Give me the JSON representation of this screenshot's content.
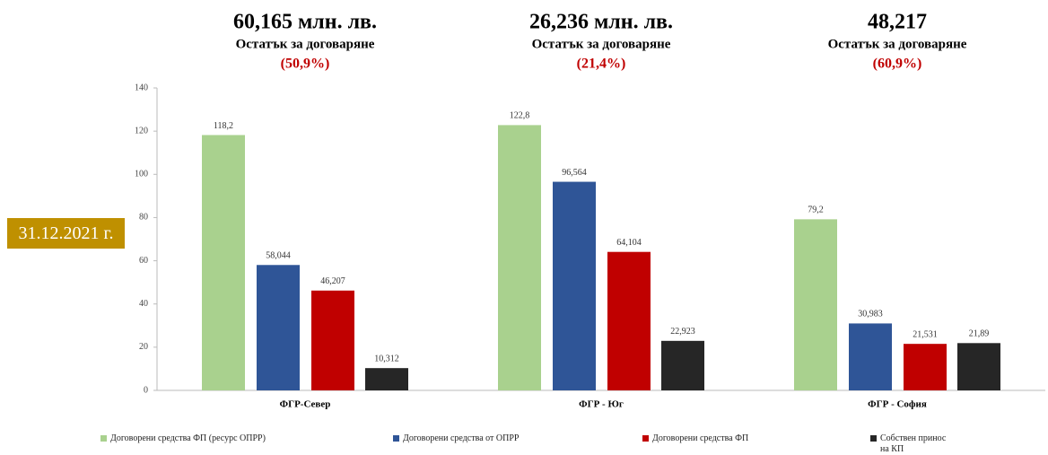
{
  "chart_data": {
    "type": "bar",
    "date_label": "31.12.2021 г.",
    "group_headers": [
      {
        "amount": "60,165 млн. лв.",
        "caption": "Остатък за договаряне",
        "percent": "(50,9%)"
      },
      {
        "amount": "26,236 млн. лв.",
        "caption": "Остатък за договаряне",
        "percent": "(21,4%)"
      },
      {
        "amount": "48,217",
        "caption": "Остатък за договаряне",
        "percent": "(60,9%)"
      }
    ],
    "categories": [
      "ФГР-Север",
      "ФГР - Юг",
      "ФГР - София"
    ],
    "ylim": [
      0,
      140
    ],
    "yticks": [
      0,
      20,
      40,
      60,
      80,
      100,
      120,
      140
    ],
    "grid": false,
    "legend": "bottom",
    "series": [
      {
        "name": "Договорени средства ФП (ресурс ОПРР)",
        "color": "#a9d18e",
        "values": [
          118.2,
          122.8,
          79.2
        ],
        "value_labels": [
          "118,2",
          "122,8",
          "79,2"
        ]
      },
      {
        "name": "Договорени средства от ОПРР",
        "color": "#2f5597",
        "values": [
          58.044,
          96.564,
          30.983
        ],
        "value_labels": [
          "58,044",
          "96,564",
          "30,983"
        ]
      },
      {
        "name": "Договорени средства ФП",
        "color": "#c00000",
        "values": [
          46.207,
          64.104,
          21.531
        ],
        "value_labels": [
          "46,207",
          "64,104",
          "21,531"
        ]
      },
      {
        "name": "Собствен принос на КП",
        "color": "#262626",
        "values": [
          10.312,
          22.923,
          21.89
        ],
        "value_labels": [
          "10,312",
          "22,923",
          "21,89"
        ]
      }
    ]
  }
}
